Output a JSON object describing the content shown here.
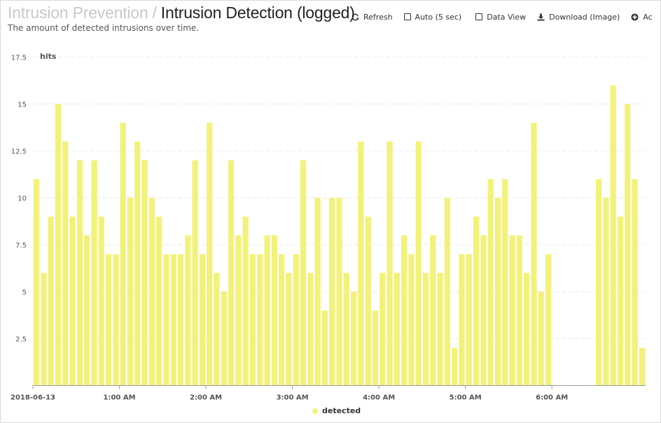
{
  "header": {
    "breadcrumb_parent": "Intrusion Prevention",
    "separator": "/",
    "title": "Intrusion Detection (logged)",
    "subtitle": "The amount of detected intrusions over time."
  },
  "toolbar": {
    "refresh_label": "Refresh",
    "auto_label": "Auto (5 sec)",
    "auto_checked": false,
    "data_view_label": "Data View",
    "data_view_checked": false,
    "download_label": "Download (Image)",
    "add_label": "Ac"
  },
  "chart_data": {
    "type": "bar",
    "title": "",
    "ylabel": "hits",
    "xlabel": "",
    "ylim": [
      0,
      17.5
    ],
    "y_ticks": [
      "2.5",
      "5",
      "7.5",
      "10",
      "12.5",
      "15",
      "17.5"
    ],
    "x_tick_labels": [
      "2018-06-13",
      "1:00 AM",
      "2:00 AM",
      "3:00 AM",
      "4:00 AM",
      "5:00 AM",
      "6:00 AM"
    ],
    "grid": true,
    "legend_position": "bottom-center",
    "series": [
      {
        "name": "detected",
        "color": "#f2f27a",
        "values": [
          11,
          6,
          9,
          15,
          13,
          9,
          12,
          8,
          12,
          9,
          7,
          7,
          14,
          10,
          13,
          12,
          10,
          9,
          7,
          7,
          7,
          8,
          12,
          7,
          14,
          6,
          5,
          12,
          8,
          9,
          7,
          7,
          8,
          8,
          7,
          6,
          7,
          12,
          6,
          10,
          4,
          10,
          10,
          6,
          5,
          13,
          9,
          4,
          6,
          13,
          6,
          8,
          7,
          13,
          6,
          8,
          6,
          10,
          2,
          7,
          7,
          9,
          8,
          11,
          10,
          11,
          8,
          8,
          6,
          14,
          5,
          7,
          0,
          0,
          0,
          0,
          0,
          0,
          11,
          10,
          16,
          9,
          15,
          11,
          2
        ]
      }
    ]
  }
}
